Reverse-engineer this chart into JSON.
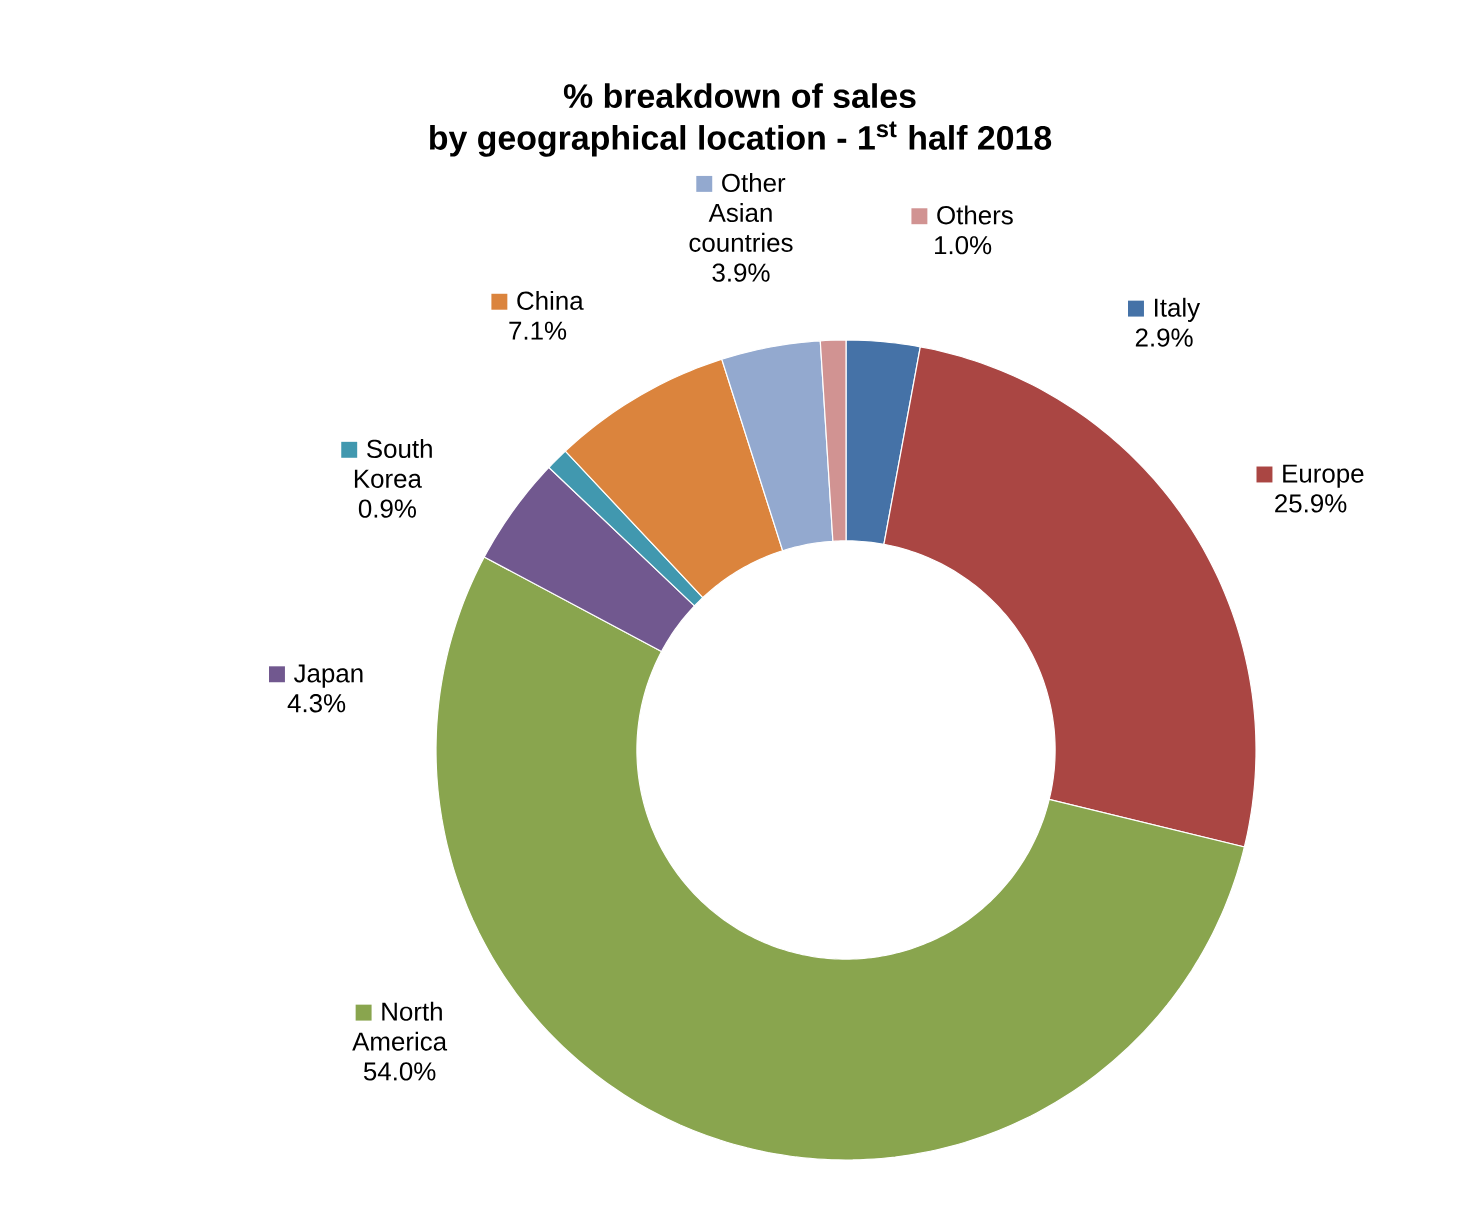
{
  "chart_data": {
    "type": "donut",
    "title": "% breakdown of sales",
    "subtitle": "by geographical location - 1$^{st}$ half 2018",
    "categories": [
      "Italy",
      "Europe",
      "North America",
      "Japan",
      "South Korea",
      "China",
      "Other Asian countries",
      "Others"
    ],
    "values": [
      2.9,
      25.9,
      54.0,
      4.3,
      0.9,
      7.1,
      3.9,
      1.0
    ],
    "value_labels": [
      "2.9%",
      "25.9%",
      "54.0%",
      "4.3%",
      "0.9%",
      "7.1%",
      "3.9%",
      "1.0%"
    ],
    "legend": "top",
    "colors": [
      "#4572a7",
      "#aa4643",
      "#89a54e",
      "#71588f",
      "#4198af",
      "#db843d",
      "#93a9cf",
      "#d19392"
    ]
  }
}
